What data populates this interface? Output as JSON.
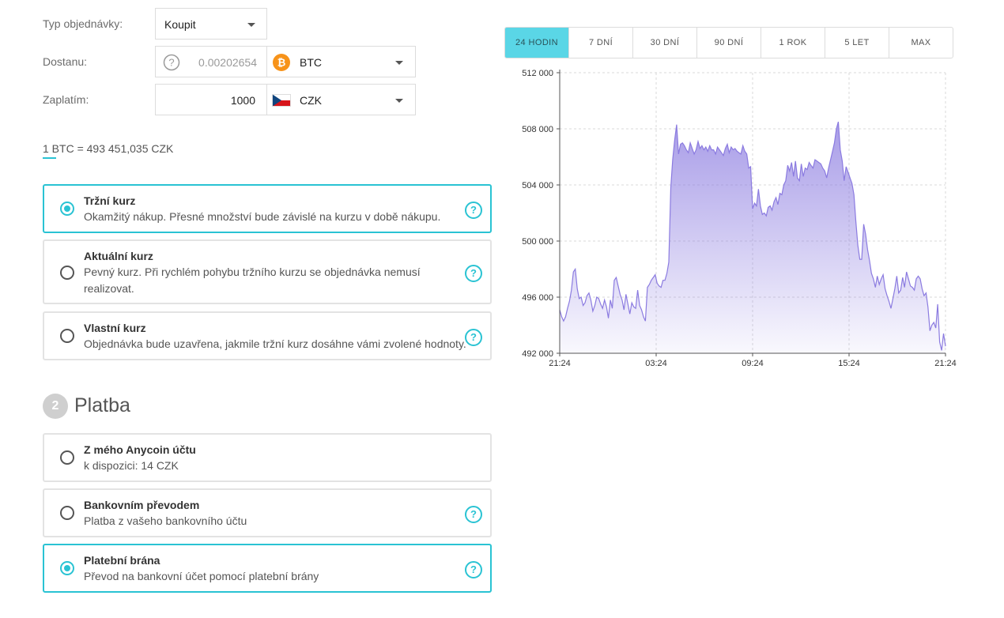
{
  "order_form": {
    "type_label": "Typ objednávky:",
    "type_value": "Koupit",
    "receive_label": "Dostanu:",
    "receive_amount": "0.00202654",
    "receive_currency": "BTC",
    "pay_label": "Zaplatím:",
    "pay_amount": "1000",
    "pay_currency": "CZK",
    "rate_text": "1 BTC = 493 451,035 CZK"
  },
  "rate_options": [
    {
      "title": "Tržní kurz",
      "desc": "Okamžitý nákup. Přesné množství bude závislé na kurzu v době nákupu.",
      "selected": true
    },
    {
      "title": "Aktuální kurz",
      "desc": "Pevný kurz. Při rychlém pohybu tržního kurzu se objednávka nemusí realizovat.",
      "selected": false
    },
    {
      "title": "Vlastní kurz",
      "desc": "Objednávka bude uzavřena, jakmile tržní kurz dosáhne vámi zvolené hodnoty.",
      "selected": false
    }
  ],
  "payment_section": {
    "step_number": "2",
    "title": "Platba"
  },
  "payment_options": [
    {
      "title": "Z mého Anycoin účtu",
      "desc": "k dispozici: 14 CZK",
      "selected": false,
      "help": false
    },
    {
      "title": "Bankovním převodem",
      "desc": "Platba z vašeho bankovního účtu",
      "selected": false,
      "help": true
    },
    {
      "title": "Platební brána",
      "desc": "Převod na bankovní účet pomocí platební brány",
      "selected": true,
      "help": true
    }
  ],
  "icons": {
    "help": "question-circle-icon",
    "btc": "bitcoin-icon",
    "czk": "czech-flag-icon",
    "dropdown": "chevron-down-icon"
  },
  "colors": {
    "accent": "#2ac3d3",
    "active_tab": "#5ad6e6",
    "chart_line": "#8b7be0",
    "btc_orange": "#f7931a"
  },
  "chart_tabs": [
    "24 HODIN",
    "7 DNÍ",
    "30 DNÍ",
    "90 DNÍ",
    "1 ROK",
    "5 LET",
    "MAX"
  ],
  "active_tab": "24 HODIN",
  "chart_data": {
    "type": "area",
    "ylim": [
      492000,
      512000
    ],
    "y_ticks": [
      "512 000",
      "508 000",
      "504 000",
      "500 000",
      "496 000",
      "492 000"
    ],
    "x_ticks": [
      "21:24",
      "03:24",
      "09:24",
      "15:24",
      "21:24"
    ],
    "grid": true,
    "series": [
      {
        "values": [
          495100,
          494600,
          494300,
          494600,
          495200,
          495700,
          496500,
          497800,
          498000,
          496600,
          495900,
          496000,
          495400,
          495600,
          496100,
          496300,
          495800,
          495000,
          495400,
          496000,
          495900,
          495500,
          495200,
          495800,
          495300,
          494500,
          495800,
          495200,
          497200,
          497400,
          496800,
          496200,
          495800,
          495100,
          496200,
          495500,
          494800,
          495600,
          495300,
          495200,
          496500,
          495400,
          495100,
          494600,
          494300,
          496700,
          496900,
          497200,
          497400,
          497600,
          497000,
          496800,
          496700,
          497200,
          497200,
          497700,
          498500,
          503800,
          505800,
          507200,
          508300,
          506200,
          506900,
          507000,
          506800,
          506500,
          506300,
          507000,
          506600,
          506200,
          506500,
          507100,
          506600,
          506800,
          506500,
          506700,
          506400,
          506800,
          506500,
          506500,
          506200,
          506700,
          506500,
          506300,
          506100,
          506600,
          506900,
          506300,
          506700,
          506500,
          506600,
          506400,
          506300,
          506200,
          506800,
          506400,
          506200,
          505200,
          505300,
          502300,
          502700,
          502500,
          503700,
          502500,
          501900,
          502000,
          501800,
          502400,
          502500,
          502200,
          502800,
          503100,
          502600,
          503400,
          503300,
          504000,
          504300,
          505400,
          505000,
          505600,
          504600,
          505700,
          504500,
          504300,
          505500,
          504600,
          505200,
          505100,
          505600,
          505400,
          505200,
          505800,
          505700,
          505600,
          505500,
          505200,
          505000,
          504500,
          505200,
          505800,
          506400,
          507000,
          508000,
          508500,
          506500,
          505700,
          504300,
          505300,
          504900,
          504500,
          504100,
          503300,
          501400,
          499700,
          498700,
          498700,
          501200,
          500500,
          499400,
          498600,
          497700,
          497300,
          496700,
          497500,
          496900,
          497300,
          497600,
          496600,
          496100,
          495700,
          495200,
          495900,
          496600,
          497500,
          496300,
          496500,
          497400,
          496700,
          497800,
          497300,
          496800,
          496700,
          496500,
          497300,
          497500,
          497300,
          496600,
          496100,
          496300,
          495300,
          493600,
          494000,
          494200,
          493800,
          495500,
          492800,
          492200,
          493400,
          492500
        ]
      }
    ]
  }
}
